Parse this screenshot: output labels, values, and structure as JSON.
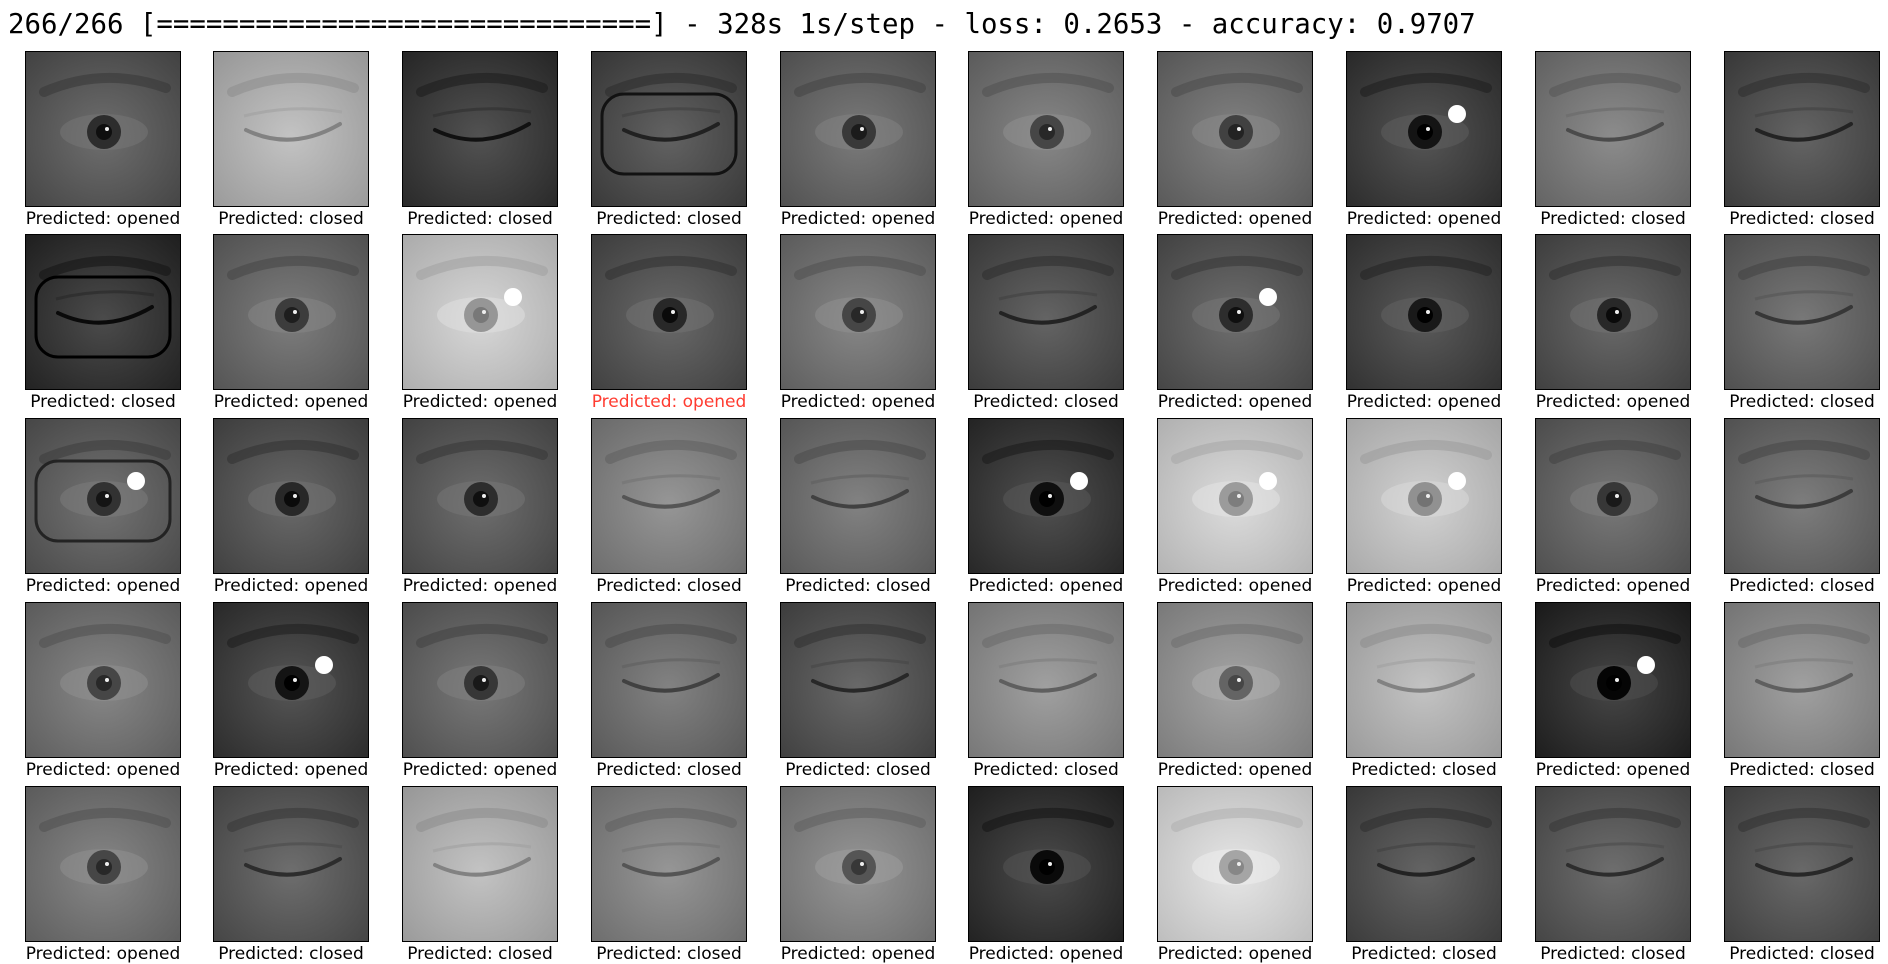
{
  "training_log": "266/266 [==============================] - 328s 1s/step - loss: 0.2653 - accuracy: 0.9707",
  "colors": {
    "background": "#ffffff",
    "label_default": "#000000",
    "label_highlight": "#ff3b30"
  },
  "samples": [
    {
      "label": "Predicted: opened",
      "state": "opened",
      "tone": 100
    },
    {
      "label": "Predicted: closed",
      "state": "closed",
      "tone": 185
    },
    {
      "label": "Predicted: closed",
      "state": "closed",
      "tone": 72
    },
    {
      "label": "Predicted: closed",
      "state": "closed",
      "tone": 88,
      "glasses": true
    },
    {
      "label": "Predicted: opened",
      "state": "opened",
      "tone": 112
    },
    {
      "label": "Predicted: opened",
      "state": "opened",
      "tone": 125
    },
    {
      "label": "Predicted: opened",
      "state": "opened",
      "tone": 120
    },
    {
      "label": "Predicted: opened",
      "state": "opened",
      "tone": 75,
      "glint": true
    },
    {
      "label": "Predicted: closed",
      "state": "closed",
      "tone": 130
    },
    {
      "label": "Predicted: closed",
      "state": "closed",
      "tone": 90
    },
    {
      "label": "Predicted: closed",
      "state": "closed",
      "tone": 65,
      "glasses": true
    },
    {
      "label": "Predicted: opened",
      "state": "opened",
      "tone": 115
    },
    {
      "label": "Predicted: opened",
      "state": "opened",
      "tone": 205,
      "glint": true
    },
    {
      "label": "Predicted: opened",
      "state": "opened",
      "tone": 95,
      "highlight": true
    },
    {
      "label": "Predicted: opened",
      "state": "opened",
      "tone": 125
    },
    {
      "label": "Predicted: closed",
      "state": "closed",
      "tone": 90
    },
    {
      "label": "Predicted: opened",
      "state": "opened",
      "tone": 100,
      "glint": true
    },
    {
      "label": "Predicted: opened",
      "state": "opened",
      "tone": 80
    },
    {
      "label": "Predicted: opened",
      "state": "opened",
      "tone": 95
    },
    {
      "label": "Predicted: closed",
      "state": "closed",
      "tone": 110
    },
    {
      "label": "Predicted: opened",
      "state": "opened",
      "tone": 105,
      "glasses": true,
      "glint": true
    },
    {
      "label": "Predicted: opened",
      "state": "opened",
      "tone": 95
    },
    {
      "label": "Predicted: opened",
      "state": "opened",
      "tone": 100
    },
    {
      "label": "Predicted: closed",
      "state": "closed",
      "tone": 140
    },
    {
      "label": "Predicted: closed",
      "state": "closed",
      "tone": 120
    },
    {
      "label": "Predicted: opened",
      "state": "opened",
      "tone": 70,
      "glint": true
    },
    {
      "label": "Predicted: opened",
      "state": "opened",
      "tone": 210,
      "glint": true
    },
    {
      "label": "Predicted: opened",
      "state": "opened",
      "tone": 200,
      "glint": true
    },
    {
      "label": "Predicted: opened",
      "state": "opened",
      "tone": 110
    },
    {
      "label": "Predicted: closed",
      "state": "closed",
      "tone": 115
    },
    {
      "label": "Predicted: opened",
      "state": "opened",
      "tone": 125
    },
    {
      "label": "Predicted: opened",
      "state": "opened",
      "tone": 75,
      "glint": true
    },
    {
      "label": "Predicted: opened",
      "state": "opened",
      "tone": 110
    },
    {
      "label": "Predicted: closed",
      "state": "closed",
      "tone": 120
    },
    {
      "label": "Predicted: closed",
      "state": "closed",
      "tone": 95
    },
    {
      "label": "Predicted: closed",
      "state": "closed",
      "tone": 150
    },
    {
      "label": "Predicted: opened",
      "state": "opened",
      "tone": 155
    },
    {
      "label": "Predicted: closed",
      "state": "closed",
      "tone": 185
    },
    {
      "label": "Predicted: opened",
      "state": "opened",
      "tone": 60,
      "glint": true
    },
    {
      "label": "Predicted: closed",
      "state": "closed",
      "tone": 150
    },
    {
      "label": "Predicted: opened",
      "state": "opened",
      "tone": 125
    },
    {
      "label": "Predicted: closed",
      "state": "closed",
      "tone": 100
    },
    {
      "label": "Predicted: closed",
      "state": "closed",
      "tone": 185
    },
    {
      "label": "Predicted: closed",
      "state": "closed",
      "tone": 140
    },
    {
      "label": "Predicted: opened",
      "state": "opened",
      "tone": 140
    },
    {
      "label": "Predicted: opened",
      "state": "opened",
      "tone": 65
    },
    {
      "label": "Predicted: opened",
      "state": "opened",
      "tone": 220
    },
    {
      "label": "Predicted: closed",
      "state": "closed",
      "tone": 90
    },
    {
      "label": "Predicted: closed",
      "state": "closed",
      "tone": 100
    },
    {
      "label": "Predicted: closed",
      "state": "closed",
      "tone": 95
    }
  ]
}
